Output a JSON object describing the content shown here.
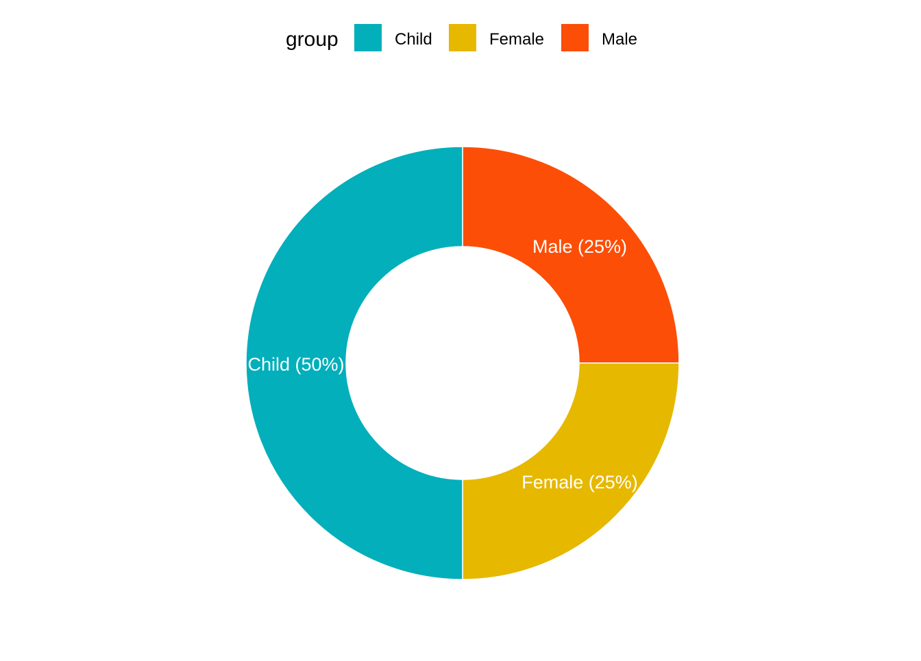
{
  "chart_data": {
    "type": "pie",
    "style": "donut",
    "legend": {
      "title": "group",
      "position": "top"
    },
    "slices": [
      {
        "category": "Child",
        "value": 50,
        "label": "Child (50%)",
        "color": "#02AFBB"
      },
      {
        "category": "Female",
        "value": 25,
        "label": "Female (25%)",
        "color": "#E6B800"
      },
      {
        "category": "Male",
        "value": 25,
        "label": "Male (25%)",
        "color": "#FC4E07"
      }
    ],
    "colors": {
      "background": "#FFFFFF",
      "slice_border": "#FFFFFF",
      "label_text": "#FFFFFF",
      "legend_text": "#000000"
    }
  }
}
